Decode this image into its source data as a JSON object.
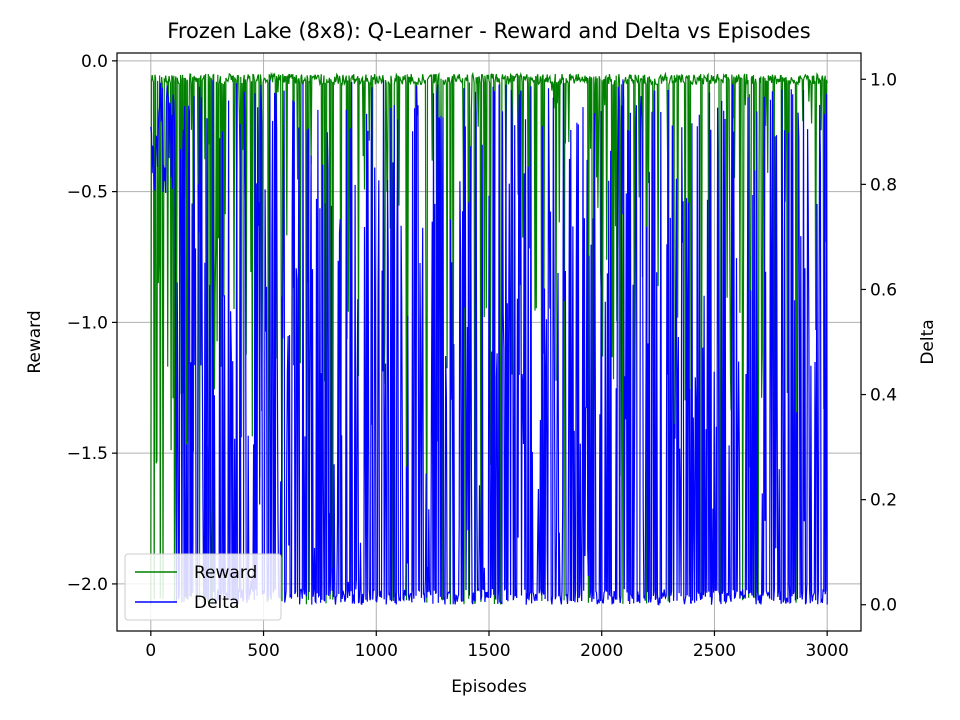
{
  "chart_data": {
    "type": "line",
    "title": "Frozen Lake (8x8): Q-Learner - Reward and Delta vs Episodes",
    "xlabel": "Episodes",
    "ylabel_left": "Reward",
    "ylabel_right": "Delta",
    "xlim": [
      -150,
      3150
    ],
    "ylim_left": [
      -2.18,
      0.03
    ],
    "ylim_right": [
      -0.05,
      1.05
    ],
    "x_ticks": [
      0,
      500,
      1000,
      1500,
      2000,
      2500,
      3000
    ],
    "x_tick_labels": [
      "0",
      "500",
      "1000",
      "1500",
      "2000",
      "2500",
      "3000"
    ],
    "left_ticks": [
      0.0,
      -0.5,
      -1.0,
      -1.5,
      -2.0
    ],
    "left_tick_labels": [
      "0.0",
      "−0.5",
      "−1.0",
      "−1.5",
      "−2.0"
    ],
    "right_ticks": [
      0.0,
      0.2,
      0.4,
      0.6,
      0.8,
      1.0
    ],
    "right_tick_labels": [
      "0.0",
      "0.2",
      "0.4",
      "0.6",
      "0.8",
      "1.0"
    ],
    "grid": true,
    "legend_position": "lower-left",
    "series": [
      {
        "name": "Reward",
        "axis": "left",
        "color": "#008000",
        "episodes": 3000,
        "baseline": -0.05,
        "typical_min": -2.08,
        "typical_max": -0.03,
        "description_of_shape": "dense oscillation between about -0.05 and -2.07"
      },
      {
        "name": "Delta",
        "axis": "right",
        "color": "#0000ff",
        "episodes": 3000,
        "baseline": 0.01,
        "typical_min": 0.0,
        "typical_max": 1.0,
        "description_of_shape": "dense oscillation between about 0.0 and 1.0"
      }
    ]
  }
}
